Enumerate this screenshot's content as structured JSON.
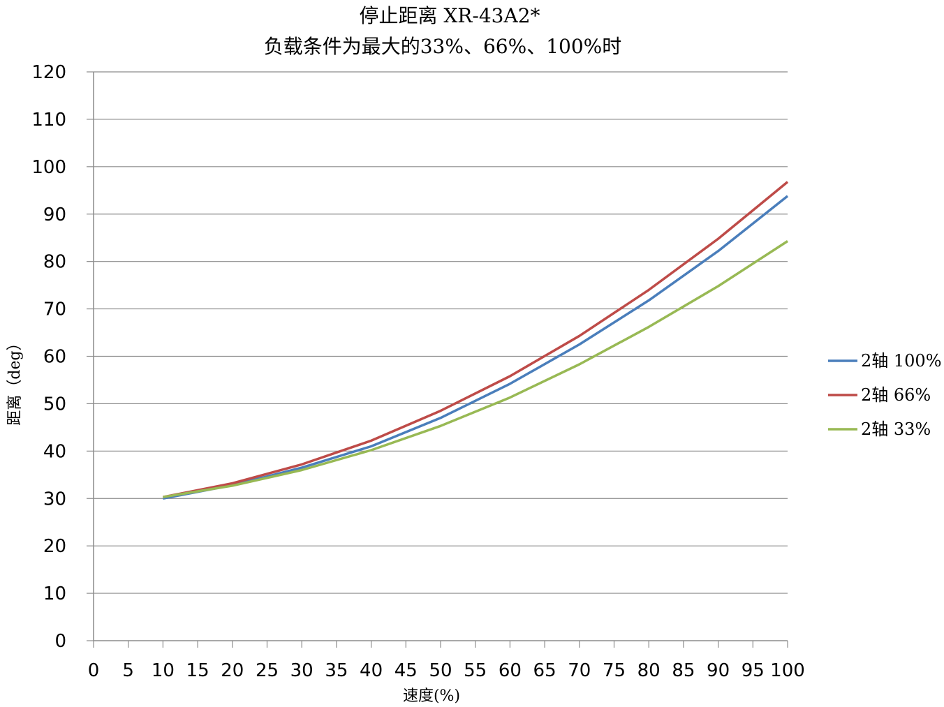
{
  "chart_data": {
    "type": "line",
    "title_line1": "停止距离 XR-43A2*",
    "title_line2": "负载条件为最大的33%、66%、100%时",
    "xlabel": "速度(%)",
    "ylabel": "距离（deg）",
    "x_ticks": [
      0,
      5,
      10,
      15,
      20,
      25,
      30,
      35,
      40,
      45,
      50,
      55,
      60,
      65,
      70,
      75,
      80,
      85,
      90,
      95,
      100
    ],
    "y_ticks": [
      0,
      10,
      20,
      30,
      40,
      50,
      60,
      70,
      80,
      90,
      100,
      110,
      120
    ],
    "xlim": [
      0,
      100
    ],
    "ylim": [
      0,
      120
    ],
    "grid": "horizontal",
    "legend_position": "right",
    "x": [
      10,
      20,
      30,
      40,
      50,
      60,
      70,
      80,
      90,
      100
    ],
    "series": [
      {
        "name": "2轴 100%",
        "color": "#4a7ebb",
        "values": [
          30.0,
          32.8,
          36.5,
          41.0,
          47.0,
          54.2,
          62.5,
          71.8,
          82.2,
          93.8
        ]
      },
      {
        "name": "2轴 66%",
        "color": "#be4b48",
        "values": [
          30.3,
          33.2,
          37.2,
          42.2,
          48.5,
          55.8,
          64.3,
          74.0,
          84.8,
          96.8
        ]
      },
      {
        "name": "2轴 33%",
        "color": "#98b954",
        "values": [
          30.3,
          32.7,
          36.0,
          40.2,
          45.3,
          51.3,
          58.3,
          66.2,
          74.8,
          84.3
        ]
      }
    ]
  }
}
